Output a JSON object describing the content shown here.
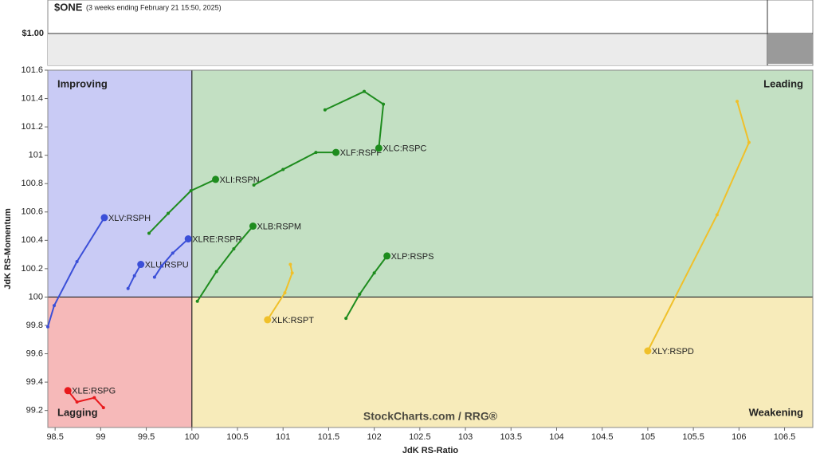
{
  "chart_data": {
    "type": "scatter",
    "title": "$ONE",
    "subtitle": "(3 weeks ending February 21 15:50, 2025)",
    "price_label": "$1.00",
    "watermark": "StockCharts.com / RRG®",
    "x_label": "JdK RS-Ratio",
    "y_label": "JdK RS-Momentum",
    "xlim": [
      98.42,
      106.81
    ],
    "ylim": [
      99.08,
      101.6
    ],
    "xticks": [
      98.5,
      99,
      99.5,
      100,
      100.5,
      101,
      101.5,
      102,
      102.5,
      103,
      103.5,
      104,
      104.5,
      105,
      105.5,
      106,
      106.5
    ],
    "yticks": [
      99.2,
      99.4,
      99.6,
      99.8,
      100,
      100.2,
      100.4,
      100.6,
      100.8,
      101,
      101.2,
      101.4,
      101.6
    ],
    "center": [
      100,
      100
    ],
    "quadrants": [
      {
        "name": "Improving",
        "color": "#c9cbf5",
        "text_color": "#3b4fd0"
      },
      {
        "name": "Leading",
        "color": "#c3e0c3",
        "text_color": "#1e8c1e"
      },
      {
        "name": "Lagging",
        "color": "#f6b9b9",
        "text_color": "#e0191c"
      },
      {
        "name": "Weakening",
        "color": "#f7ebba",
        "text_color": "#e0b020"
      }
    ],
    "series": [
      {
        "name": "XLV:RSPH",
        "color": "#3b4fd8",
        "x": [
          98.42,
          98.49,
          98.74,
          99.04
        ],
        "y": [
          99.79,
          99.94,
          100.25,
          100.56
        ]
      },
      {
        "name": "XLU:RSPU",
        "color": "#3b4fd8",
        "x": [
          99.3,
          99.37,
          99.44
        ],
        "y": [
          100.06,
          100.15,
          100.23
        ]
      },
      {
        "name": "XLRE:RSPR",
        "color": "#3b4fd8",
        "x": [
          99.59,
          99.67,
          99.79,
          99.96
        ],
        "y": [
          100.14,
          100.22,
          100.31,
          100.41
        ]
      },
      {
        "name": "XLE:RSPG",
        "color": "#e8191c",
        "x": [
          99.03,
          98.93,
          98.74,
          98.64
        ],
        "y": [
          99.22,
          99.29,
          99.26,
          99.34
        ]
      },
      {
        "name": "XLI:RSPN",
        "color": "#1e8c1e",
        "x": [
          99.53,
          99.74,
          99.99,
          100.26
        ],
        "y": [
          100.45,
          100.59,
          100.75,
          100.83
        ]
      },
      {
        "name": "XLF:RSPF",
        "color": "#1e8c1e",
        "x": [
          100.68,
          101.0,
          101.36,
          101.58
        ],
        "y": [
          100.79,
          100.9,
          101.02,
          101.02
        ]
      },
      {
        "name": "XLC:RSPC",
        "color": "#1e8c1e",
        "x": [
          101.46,
          101.89,
          102.1,
          102.05
        ],
        "y": [
          101.32,
          101.45,
          101.36,
          101.05
        ]
      },
      {
        "name": "XLB:RSPM",
        "color": "#1e8c1e",
        "x": [
          100.06,
          100.27,
          100.46,
          100.67
        ],
        "y": [
          99.97,
          100.18,
          100.34,
          100.5
        ]
      },
      {
        "name": "XLP:RSPS",
        "color": "#1e8c1e",
        "x": [
          101.69,
          101.84,
          102.0,
          102.14
        ],
        "y": [
          99.85,
          100.02,
          100.17,
          100.29
        ]
      },
      {
        "name": "XLK:RSPT",
        "color": "#f0c02a",
        "x": [
          101.08,
          101.1,
          101.02,
          100.83
        ],
        "y": [
          100.23,
          100.17,
          100.03,
          99.84
        ]
      },
      {
        "name": "XLY:RSPD",
        "color": "#f0c02a",
        "x": [
          105.98,
          106.11,
          105.76,
          105.0
        ],
        "y": [
          101.38,
          101.09,
          100.58,
          99.62
        ]
      }
    ]
  }
}
